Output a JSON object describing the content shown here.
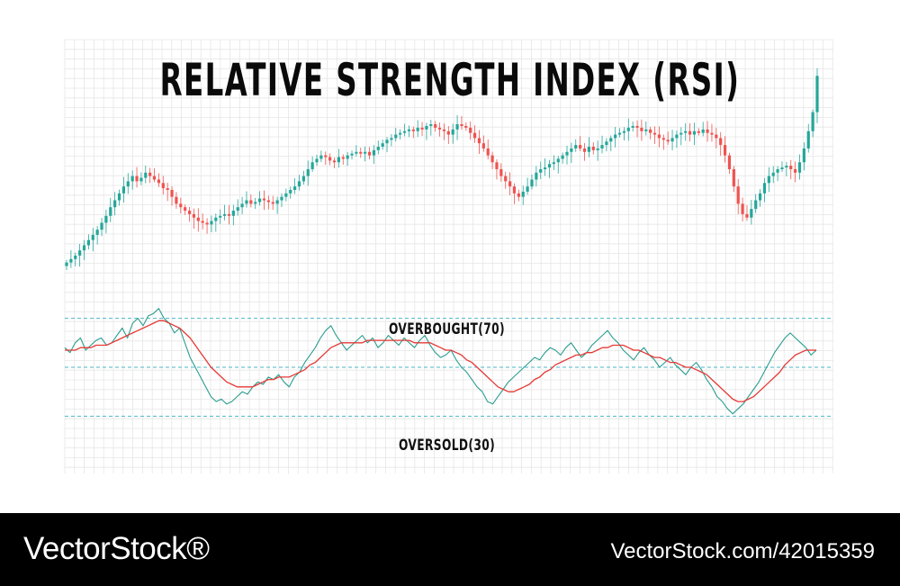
{
  "colors": {
    "up": "#26a69a",
    "down": "#ef5350",
    "rsi_line": "#2a9d8f",
    "rsi_ma": "#e53935",
    "level_lines": "#4db6c8",
    "grid": "#e6e6e6",
    "footer_bg": "#000000"
  },
  "chart_data": [
    {
      "type": "candlestick",
      "title": "RELATIVE STRENGTH INDEX (RSI)",
      "grid": true,
      "ylim": [
        0,
        100
      ],
      "closes": [
        8,
        10,
        12,
        15,
        18,
        21,
        24,
        27,
        31,
        35,
        40,
        44,
        48,
        52,
        55,
        58,
        55,
        57,
        60,
        58,
        56,
        54,
        51,
        50,
        46,
        42,
        40,
        38,
        36,
        34,
        32,
        31,
        30,
        32,
        34,
        35,
        36,
        35,
        38,
        40,
        42,
        44,
        42,
        43,
        45,
        44,
        43,
        42,
        44,
        46,
        48,
        50,
        52,
        55,
        58,
        62,
        66,
        68,
        70,
        69,
        67,
        66,
        69,
        68,
        70,
        71,
        72,
        71,
        72,
        70,
        73,
        75,
        77,
        79,
        80,
        82,
        83,
        84,
        85,
        84,
        86,
        85,
        87,
        88,
        86,
        85,
        84,
        82,
        85,
        88,
        87,
        86,
        83,
        80,
        77,
        74,
        70,
        66,
        62,
        58,
        55,
        52,
        48,
        46,
        49,
        52,
        56,
        60,
        62,
        63,
        65,
        66,
        68,
        70,
        72,
        74,
        76,
        74,
        72,
        75,
        73,
        74,
        76,
        78,
        80,
        82,
        83,
        84,
        86,
        87,
        86,
        84,
        85,
        83,
        82,
        80,
        79,
        78,
        80,
        82,
        83,
        84,
        82,
        84,
        83,
        85,
        83,
        82,
        80,
        76,
        70,
        62,
        52,
        42,
        36,
        34,
        39,
        44,
        48,
        54,
        58,
        60,
        62,
        63,
        64,
        62,
        60,
        66,
        74,
        84,
        95,
        116
      ]
    },
    {
      "type": "line",
      "ylim": [
        25,
        75
      ],
      "series": [
        {
          "name": "",
          "values": [
            58,
            56,
            60,
            62,
            57,
            59,
            61,
            62,
            59,
            60,
            63,
            66,
            62,
            68,
            70,
            67,
            71,
            72,
            74,
            70,
            68,
            64,
            66,
            60,
            54,
            50,
            46,
            42,
            38,
            36,
            37,
            35,
            36,
            38,
            40,
            39,
            42,
            44,
            43,
            46,
            45,
            47,
            44,
            42,
            46,
            48,
            52,
            55,
            58,
            62,
            65,
            67,
            63,
            60,
            57,
            59,
            61,
            63,
            60,
            62,
            58,
            60,
            63,
            61,
            59,
            62,
            60,
            58,
            61,
            63,
            59,
            56,
            54,
            55,
            57,
            53,
            50,
            48,
            45,
            42,
            40,
            36,
            35,
            38,
            41,
            44,
            46,
            48,
            50,
            52,
            54,
            53,
            56,
            58,
            57,
            55,
            58,
            60,
            57,
            54,
            56,
            59,
            61,
            63,
            65,
            62,
            60,
            57,
            55,
            53,
            56,
            58,
            55,
            53,
            50,
            52,
            54,
            51,
            49,
            47,
            50,
            52,
            49,
            45,
            42,
            38,
            36,
            33,
            31,
            33,
            35,
            38,
            41,
            44,
            48,
            52,
            56,
            59,
            62,
            64,
            62,
            60,
            58,
            55,
            57
          ]
        },
        {
          "name": "",
          "values": [
            57,
            57,
            57,
            58,
            58,
            58,
            59,
            59,
            59,
            60,
            61,
            62,
            63,
            64,
            65,
            66,
            67,
            68,
            69,
            69,
            68,
            67,
            66,
            64,
            62,
            59,
            56,
            53,
            50,
            48,
            46,
            44,
            43,
            42,
            42,
            42,
            42,
            43,
            44,
            45,
            45,
            46,
            46,
            46,
            47,
            48,
            49,
            51,
            52,
            54,
            56,
            58,
            59,
            60,
            60,
            60,
            60,
            60,
            61,
            61,
            61,
            61,
            61,
            61,
            61,
            61,
            61,
            60,
            60,
            60,
            60,
            59,
            58,
            57,
            57,
            56,
            55,
            53,
            52,
            50,
            48,
            46,
            44,
            42,
            41,
            40,
            40,
            41,
            42,
            43,
            45,
            46,
            48,
            49,
            51,
            52,
            53,
            54,
            55,
            55,
            56,
            56,
            57,
            58,
            58,
            59,
            59,
            59,
            58,
            57,
            57,
            56,
            55,
            54,
            54,
            53,
            52,
            52,
            51,
            50,
            50,
            49,
            48,
            47,
            45,
            43,
            41,
            39,
            37,
            36,
            36,
            37,
            38,
            40,
            42,
            44,
            46,
            48,
            51,
            53,
            55,
            56,
            57,
            57,
            57
          ]
        }
      ],
      "levels": [
        {
          "value": 70,
          "label": "OVERBOUGHT(70)"
        },
        {
          "value": 50,
          "label": ""
        },
        {
          "value": 30,
          "label": "OVERSOLD(30)"
        }
      ]
    }
  ],
  "labels": {
    "overbought": "OVERBOUGHT(70)",
    "oversold": "OVERSOLD(30)"
  },
  "footer": {
    "brand": "VectorStock®",
    "credit": "VectorStock.com/42015359"
  }
}
